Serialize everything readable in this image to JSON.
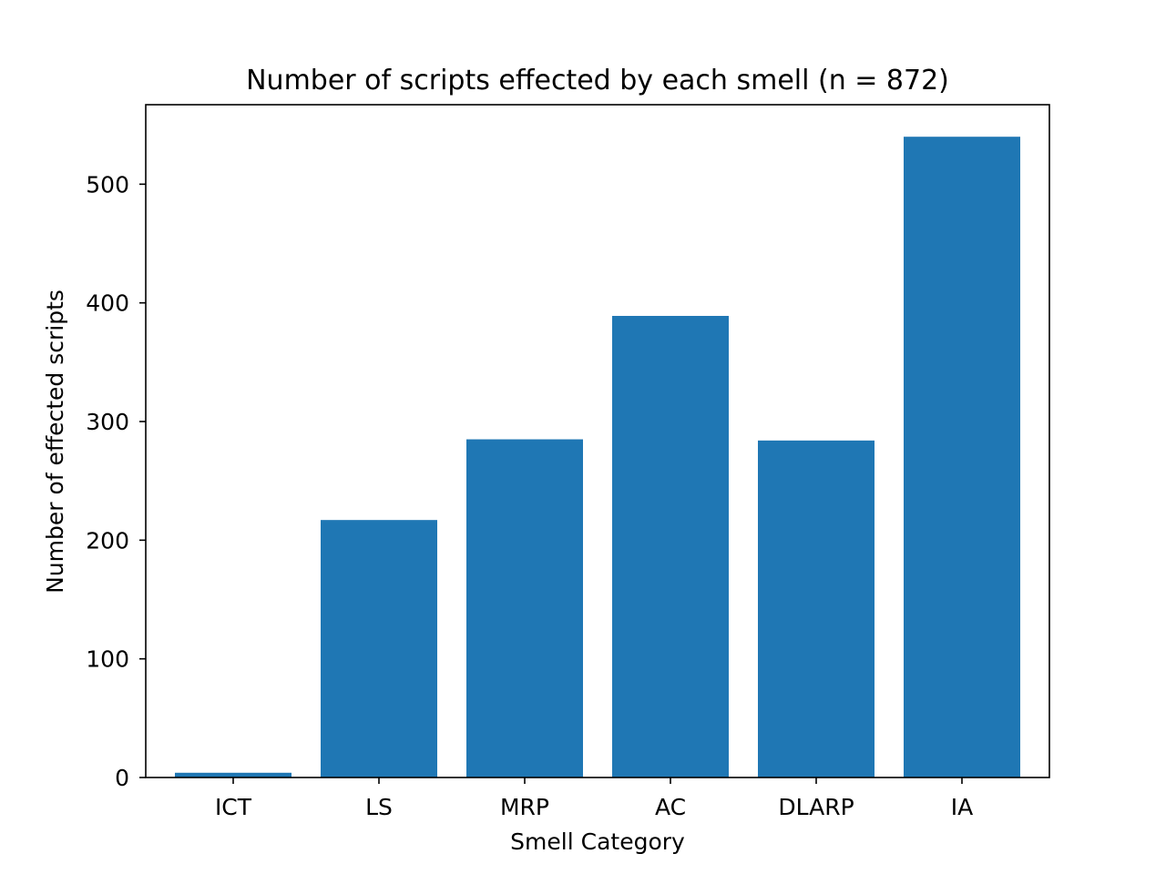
{
  "chart_data": {
    "type": "bar",
    "title": "Number of scripts effected by each smell (n = 872)",
    "xlabel": "Smell Category",
    "ylabel": "Number of effected scripts",
    "categories": [
      "ICT",
      "LS",
      "MRP",
      "AC",
      "DLARP",
      "IA"
    ],
    "values": [
      4,
      217,
      285,
      389,
      284,
      540
    ],
    "ylim": [
      0,
      567
    ],
    "yticks": [
      0,
      100,
      200,
      300,
      400,
      500
    ],
    "grid": false,
    "bar_color": "#1f77b4"
  }
}
